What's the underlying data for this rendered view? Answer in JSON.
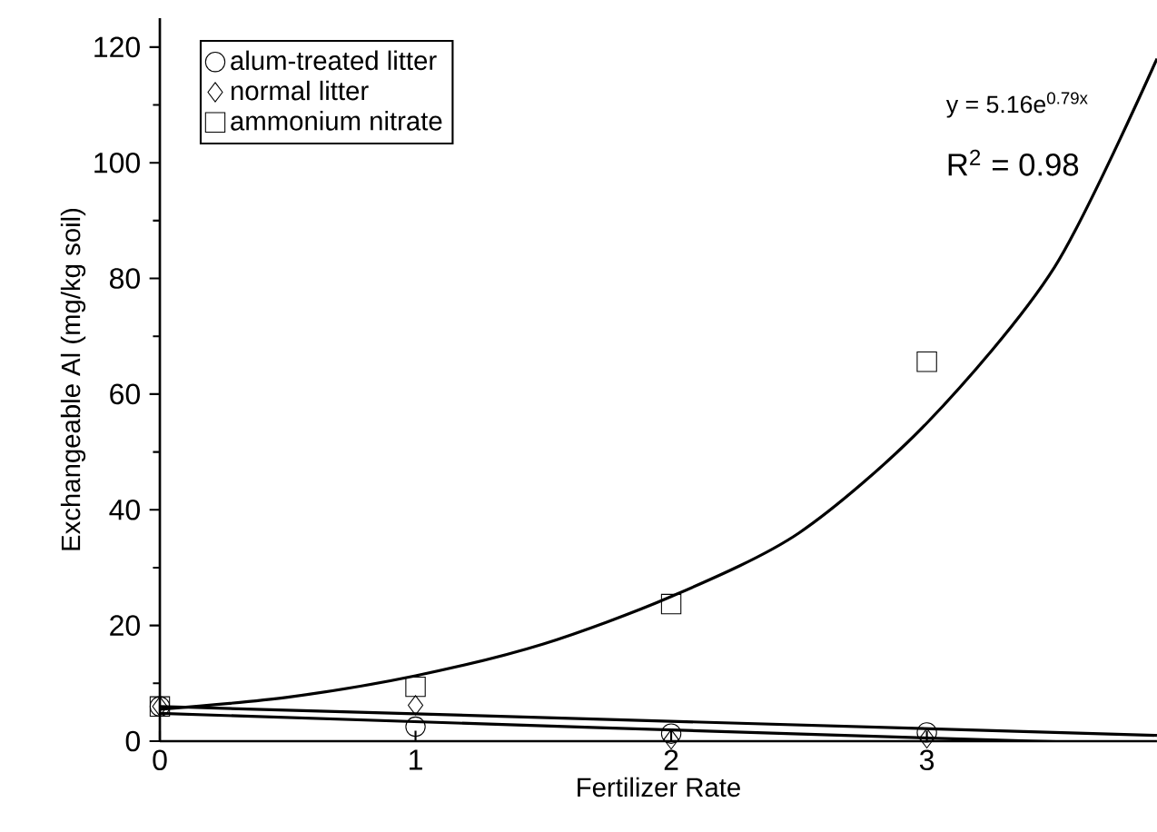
{
  "chart_data": {
    "type": "scatter",
    "xlabel": "Fertilizer Rate",
    "ylabel": "Exchangeable Al (mg/kg soil)",
    "x": [
      0,
      1,
      2,
      3
    ],
    "series": [
      {
        "name": "alum-treated litter",
        "color": "#000000",
        "marker": "circle",
        "values": [
          6,
          2.5,
          1.3,
          1.5
        ]
      },
      {
        "name": "normal litter",
        "color": "#000000",
        "marker": "diamond",
        "values": [
          6,
          6.2,
          0.3,
          0.5
        ]
      },
      {
        "name": "ammonium nitrate",
        "color": "#000000",
        "marker": "square",
        "values": [
          6,
          9.4,
          23.7,
          65.6
        ]
      },
      {
        "type": "line",
        "color": "#000000",
        "marker": "none",
        "line_style": "solid",
        "x": [
          0,
          0.5,
          1,
          1.5,
          2,
          2.5,
          3,
          3.5,
          3.9
        ],
        "values": [
          5.5,
          7.6,
          11.3,
          16.8,
          25,
          36,
          55,
          82,
          118
        ]
      },
      {
        "type": "line",
        "color": "#000000",
        "marker": "none",
        "line_style": "solid",
        "x": [
          0,
          3.9
        ],
        "values": [
          6.0,
          1.0
        ]
      },
      {
        "type": "line",
        "color": "#000000",
        "marker": "none",
        "line_style": "solid",
        "x": [
          0,
          3.4,
          3.9
        ],
        "values": [
          4.8,
          0,
          0
        ]
      }
    ],
    "xlim": [
      0,
      3.9
    ],
    "ylim": [
      0,
      125
    ],
    "xticks": [
      0,
      1,
      2,
      3
    ],
    "yticks": [
      0,
      20,
      40,
      60,
      80,
      100,
      120
    ],
    "legend": "top left",
    "grid": false,
    "annotations": [
      "y = 5.16e$^{0.79x}$",
      "R$^{2}$ = 0.98"
    ]
  }
}
